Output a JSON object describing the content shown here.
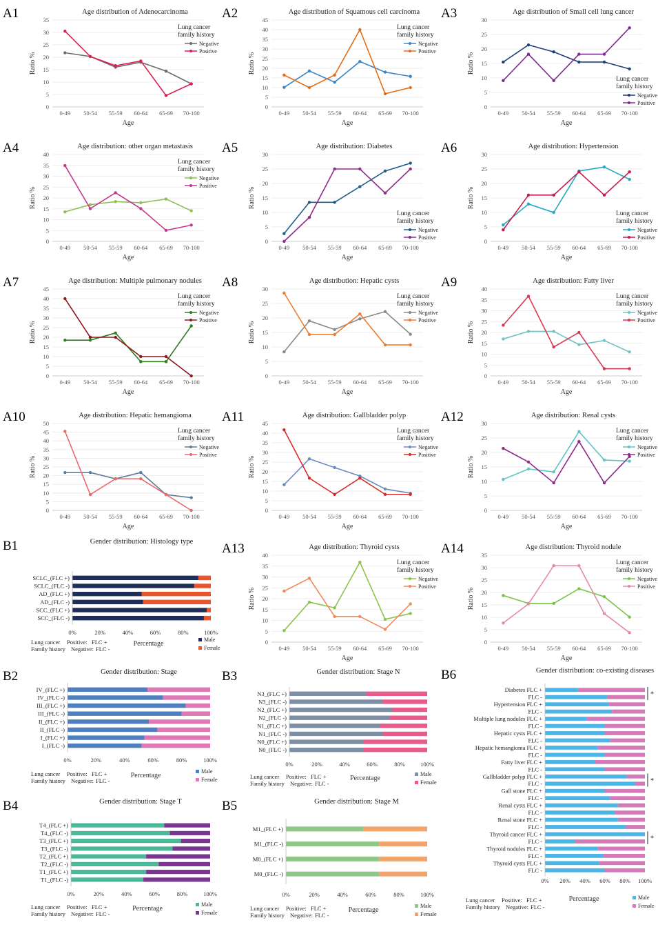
{
  "age_categories": [
    "0-49",
    "50-54",
    "55-59",
    "60-64",
    "65-69",
    "70-100"
  ],
  "common": {
    "xlabel": "Age",
    "ylabel": "Ratio %",
    "legend_title": [
      "Lung cancer",
      "family history"
    ],
    "negative": "Negative",
    "positive": "Positive",
    "bar_xlabel": "Percentage",
    "male": "Male",
    "female": "Female",
    "note_line1": [
      "Lung cancer",
      "Positive:",
      "FLC +"
    ],
    "note_line2": [
      "Family history",
      "Negative:",
      "FLC -"
    ],
    "pct_ticks": [
      "0%",
      "20%",
      "40%",
      "60%",
      "80%",
      "100%"
    ]
  },
  "line_charts": [
    {
      "id": "A1",
      "title": "Age distribution of Adenocarcinoma",
      "ylim": [
        0,
        35
      ],
      "step": 5,
      "neg": [
        21.8,
        20.3,
        16,
        18,
        14.4,
        9.3
      ],
      "pos": [
        30.5,
        20.3,
        16.6,
        18.5,
        4.6,
        9.3
      ],
      "negColor": "#6d6d6d",
      "posColor": "#dc1f50",
      "legend": "top-right"
    },
    {
      "id": "A2",
      "title": "Age distribution of Squamous cell carcinoma",
      "ylim": [
        0,
        45
      ],
      "step": 5,
      "neg": [
        10.1,
        18.6,
        12.8,
        23.5,
        18,
        15.8
      ],
      "pos": [
        16.5,
        10,
        16.5,
        40,
        6.8,
        10
      ],
      "negColor": "#3d85c6",
      "posColor": "#e26d1a",
      "legend": "top-right"
    },
    {
      "id": "A3",
      "title": "Age distribution of Small cell lung cancer",
      "ylim": [
        0,
        30
      ],
      "step": 5,
      "neg": [
        15.5,
        21.4,
        19,
        15.5,
        15.5,
        13.1
      ],
      "pos": [
        9.1,
        18.2,
        9.1,
        18.2,
        18.2,
        27.3
      ],
      "negColor": "#1f3f7a",
      "posColor": "#7b2a8e",
      "legend": "bottom-right"
    },
    {
      "id": "A4",
      "title": "Age distribution: other organ metastasis",
      "ylim": [
        0,
        40
      ],
      "step": 5,
      "neg": [
        13.6,
        16.9,
        18.3,
        17.8,
        19.5,
        14.1
      ],
      "pos": [
        34.9,
        15.1,
        22.4,
        15.1,
        5.1,
        7.5
      ],
      "negColor": "#8fbf52",
      "posColor": "#c4378e",
      "legend": "top-right"
    },
    {
      "id": "A5",
      "title": "Age distribution: Diabetes",
      "ylim": [
        0,
        30
      ],
      "step": 5,
      "neg": [
        2.7,
        13.5,
        13.5,
        18.9,
        24.3,
        27
      ],
      "pos": [
        0,
        8.3,
        25,
        25,
        16.7,
        25
      ],
      "negColor": "#1e5d8a",
      "posColor": "#8e2a8a",
      "legend": "bottom-right"
    },
    {
      "id": "A6",
      "title": "Age distribution: Hypertension",
      "ylim": [
        0,
        30
      ],
      "step": 5,
      "neg": [
        5.7,
        12.9,
        10,
        24.3,
        25.7,
        21.4
      ],
      "pos": [
        4,
        16,
        16,
        24,
        16,
        24
      ],
      "negColor": "#22a8c4",
      "posColor": "#c61a4a",
      "legend": "bottom-right"
    },
    {
      "id": "A7",
      "title": "Age distribution: Multiple pulmonary nodules",
      "ylim": [
        0,
        45
      ],
      "step": 5,
      "neg": [
        18.5,
        18.5,
        22.2,
        7.4,
        7.4,
        25.9
      ],
      "pos": [
        40,
        20,
        20,
        10,
        10,
        0
      ],
      "negColor": "#2e7d22",
      "posColor": "#8b1a1a",
      "legend": "top-right"
    },
    {
      "id": "A8",
      "title": "Age distribution: Hepatic cysts",
      "ylim": [
        0,
        30
      ],
      "step": 5,
      "neg": [
        8.3,
        19,
        16,
        19.7,
        22.2,
        14.4
      ],
      "pos": [
        28.6,
        14.3,
        14.3,
        21.4,
        10.7,
        10.7
      ],
      "negColor": "#8a8a8a",
      "posColor": "#ed7d31",
      "legend": "top-right"
    },
    {
      "id": "A9",
      "title": "Age distribution: Fatty liver",
      "ylim": [
        0,
        40
      ],
      "step": 5,
      "neg": [
        17,
        20.5,
        20.5,
        14.4,
        16.3,
        11
      ],
      "pos": [
        23.3,
        36.7,
        13.3,
        20,
        3.3,
        3.3
      ],
      "negColor": "#73c2c4",
      "posColor": "#d43a52",
      "legend": "top-right"
    },
    {
      "id": "A10",
      "title": "Age distribution: Hepatic hemangioma",
      "ylim": [
        0,
        50
      ],
      "step": 5,
      "neg": [
        21.8,
        21.8,
        18.2,
        21.8,
        9.1,
        7.3
      ],
      "pos": [
        45.5,
        9.1,
        18.2,
        18.2,
        9.1,
        0
      ],
      "negColor": "#5b7d9a",
      "posColor": "#e96a6a",
      "legend": "top-right"
    },
    {
      "id": "A11",
      "title": "Age distribution: Gallbladder polyp",
      "ylim": [
        0,
        45
      ],
      "step": 5,
      "neg": [
        13.3,
        26.7,
        22.2,
        17.8,
        11.1,
        8.9
      ],
      "pos": [
        41.7,
        16.7,
        8.3,
        16.7,
        8.3,
        8.3
      ],
      "negColor": "#6a8cbc",
      "posColor": "#d62b2b",
      "legend": "top-right"
    },
    {
      "id": "A12",
      "title": "Age distribution: Renal cysts",
      "ylim": [
        0,
        30
      ],
      "step": 5,
      "neg": [
        10.7,
        14.3,
        13.3,
        27.2,
        17.4,
        17
      ],
      "pos": [
        21.4,
        16.7,
        9.5,
        23.8,
        9.5,
        18.6
      ],
      "negColor": "#5ec4c4",
      "posColor": "#8e2a8a",
      "legend": "top-right"
    },
    {
      "id": "A13",
      "title": "Age distribution: Thyroid cysts",
      "ylim": [
        0,
        40
      ],
      "step": 5,
      "neg": [
        5.3,
        18.4,
        15.8,
        36.8,
        10.5,
        13.2
      ],
      "pos": [
        23.5,
        29.4,
        11.8,
        11.8,
        5.9,
        17.6
      ],
      "negColor": "#8bc34a",
      "posColor": "#f08a5d",
      "legend": "top-right"
    },
    {
      "id": "A14",
      "title": "Age distribution: Thyroid nodule",
      "ylim": [
        0,
        35
      ],
      "step": 5,
      "neg": [
        18.8,
        15.6,
        15.6,
        21.5,
        18.3,
        10.1
      ],
      "pos": [
        7.7,
        15.4,
        30.8,
        30.8,
        11.5,
        3.8
      ],
      "negColor": "#7cc24a",
      "posColor": "#e48aa8",
      "legend": "top-right"
    }
  ],
  "bar_charts": [
    {
      "id": "B1",
      "title": "Gender distribution: Histology type",
      "maleColor": "#1f2d5a",
      "femaleColor": "#e8542b",
      "labels": [
        "SCLC_(FLC +)",
        "SCLC_(FLC -)",
        "AD_(FLC +)",
        "AD_(FLC -)",
        "SCC_(FLC +)",
        "SCC_(FLC -)"
      ],
      "male": [
        91,
        88,
        50,
        51,
        97,
        95
      ]
    },
    {
      "id": "B2",
      "title": "Gender distribution: Stage",
      "maleColor": "#4e7fbe",
      "femaleColor": "#df78b4",
      "labels": [
        "IV_(FLC +)",
        "IV_(FLC -)",
        "III_(FLC +)",
        "III_(FLC -)",
        "II_(FLC +)",
        "II_(FLC -)",
        "I_(FLC +)",
        "I_(FLC -)"
      ],
      "male": [
        56,
        67,
        83,
        80,
        57,
        63,
        54,
        52
      ]
    },
    {
      "id": "B3",
      "title": "Gender distribution: Stage N",
      "maleColor": "#7d8ea5",
      "femaleColor": "#e65b8a",
      "labels": [
        "N3_(FLC +)",
        "N3_(FLC -)",
        "N2_(FLC +)",
        "N2_(FLC -)",
        "N1_(FLC +)",
        "N1_(FLC -)",
        "N0_(FLC +)",
        "N0_(FLC -)"
      ],
      "male": [
        56,
        68,
        75,
        73,
        66,
        68,
        54,
        54
      ]
    },
    {
      "id": "B4",
      "title": "Gender distribution: Stage T",
      "maleColor": "#4cb89a",
      "femaleColor": "#7a3590",
      "labels": [
        "T4_(FLC +)",
        "T4_(FLC -)",
        "T3_(FLC +)",
        "T3_(FLC -)",
        "T2_(FLC +)",
        "T2_(FLC -)",
        "T1_(FLC +)",
        "T1_(FLC -)"
      ],
      "male": [
        67,
        71,
        79,
        73,
        54,
        63,
        54,
        52
      ]
    },
    {
      "id": "B5",
      "title": "Gender distribution: Stage M",
      "maleColor": "#8fc68a",
      "femaleColor": "#f0a56e",
      "labels": [
        "M1_(FLC +)",
        "M1_(FLC -)",
        "M0_(FLC +)",
        "M0_(FLC -)"
      ],
      "male": [
        55,
        66,
        66,
        66
      ]
    },
    {
      "id": "B6",
      "title": "Gender distribution: co-existing diseases",
      "maleColor": "#4bb5e6",
      "femaleColor": "#d57ab8",
      "labels": [
        "Diabetes FLC +",
        "FLC -",
        "Hypertension FLC +",
        "FLC -",
        "Multiple lung nodules FLC +",
        "FLC -",
        "Hepatic cysts FLC +",
        "FLC -",
        "Hepatic hemangioma FLC +",
        "FLC -",
        "Fatty liver FLC +",
        "FLC -",
        "Gallbladder polyp FLC +",
        "FLC -",
        "Gall stone FLC +",
        "FLC -",
        "Renal cysts FLC +",
        "FLC -",
        "Renal stone FLC +",
        "FLC -",
        "Thyroid cancer FLC +",
        "FLC -",
        "Thyroid nodules FLC +",
        "FLC -",
        "Thyroid cysts FLC +",
        "FLC -"
      ],
      "male": [
        33,
        62,
        64,
        67,
        42,
        60,
        60,
        65,
        53,
        60,
        50,
        60,
        82,
        90,
        60,
        65,
        73,
        70,
        73,
        81,
        100,
        30,
        53,
        58,
        54,
        60
      ],
      "sig_marker": "*"
    }
  ]
}
